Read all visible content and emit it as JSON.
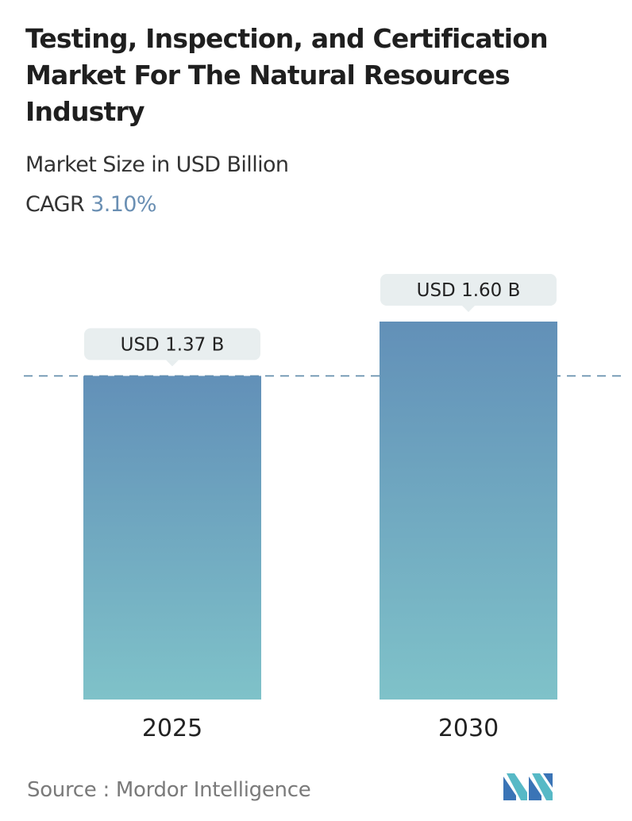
{
  "header": {
    "title": "Testing, Inspection, and Certification Market For The Natural Resources Industry",
    "subtitle": "Market Size in USD Billion",
    "cagr_label": "CAGR",
    "cagr_value": "3.10%"
  },
  "chart_data": {
    "type": "bar",
    "title": "Testing, Inspection, and Certification Market For The Natural Resources Industry",
    "subtitle": "Market Size in USD Billion",
    "categories": [
      "2025",
      "2030"
    ],
    "values": [
      1.37,
      1.6
    ],
    "data_labels": [
      "USD 1.37 B",
      "USD 1.60 B"
    ],
    "ylim": [
      0,
      1.6
    ],
    "reference_line_value": 1.37,
    "grid": false,
    "legend": "none",
    "colors": {
      "bar_top": "#6290b8",
      "bar_bottom": "#7fc2c9",
      "label_bg": "#e8eeef",
      "reference_line": "#5f8aa9"
    }
  },
  "footer": {
    "source_text": "Source :  Mordor Intelligence",
    "logo_icon": "mordor-intelligence-logo-icon"
  }
}
